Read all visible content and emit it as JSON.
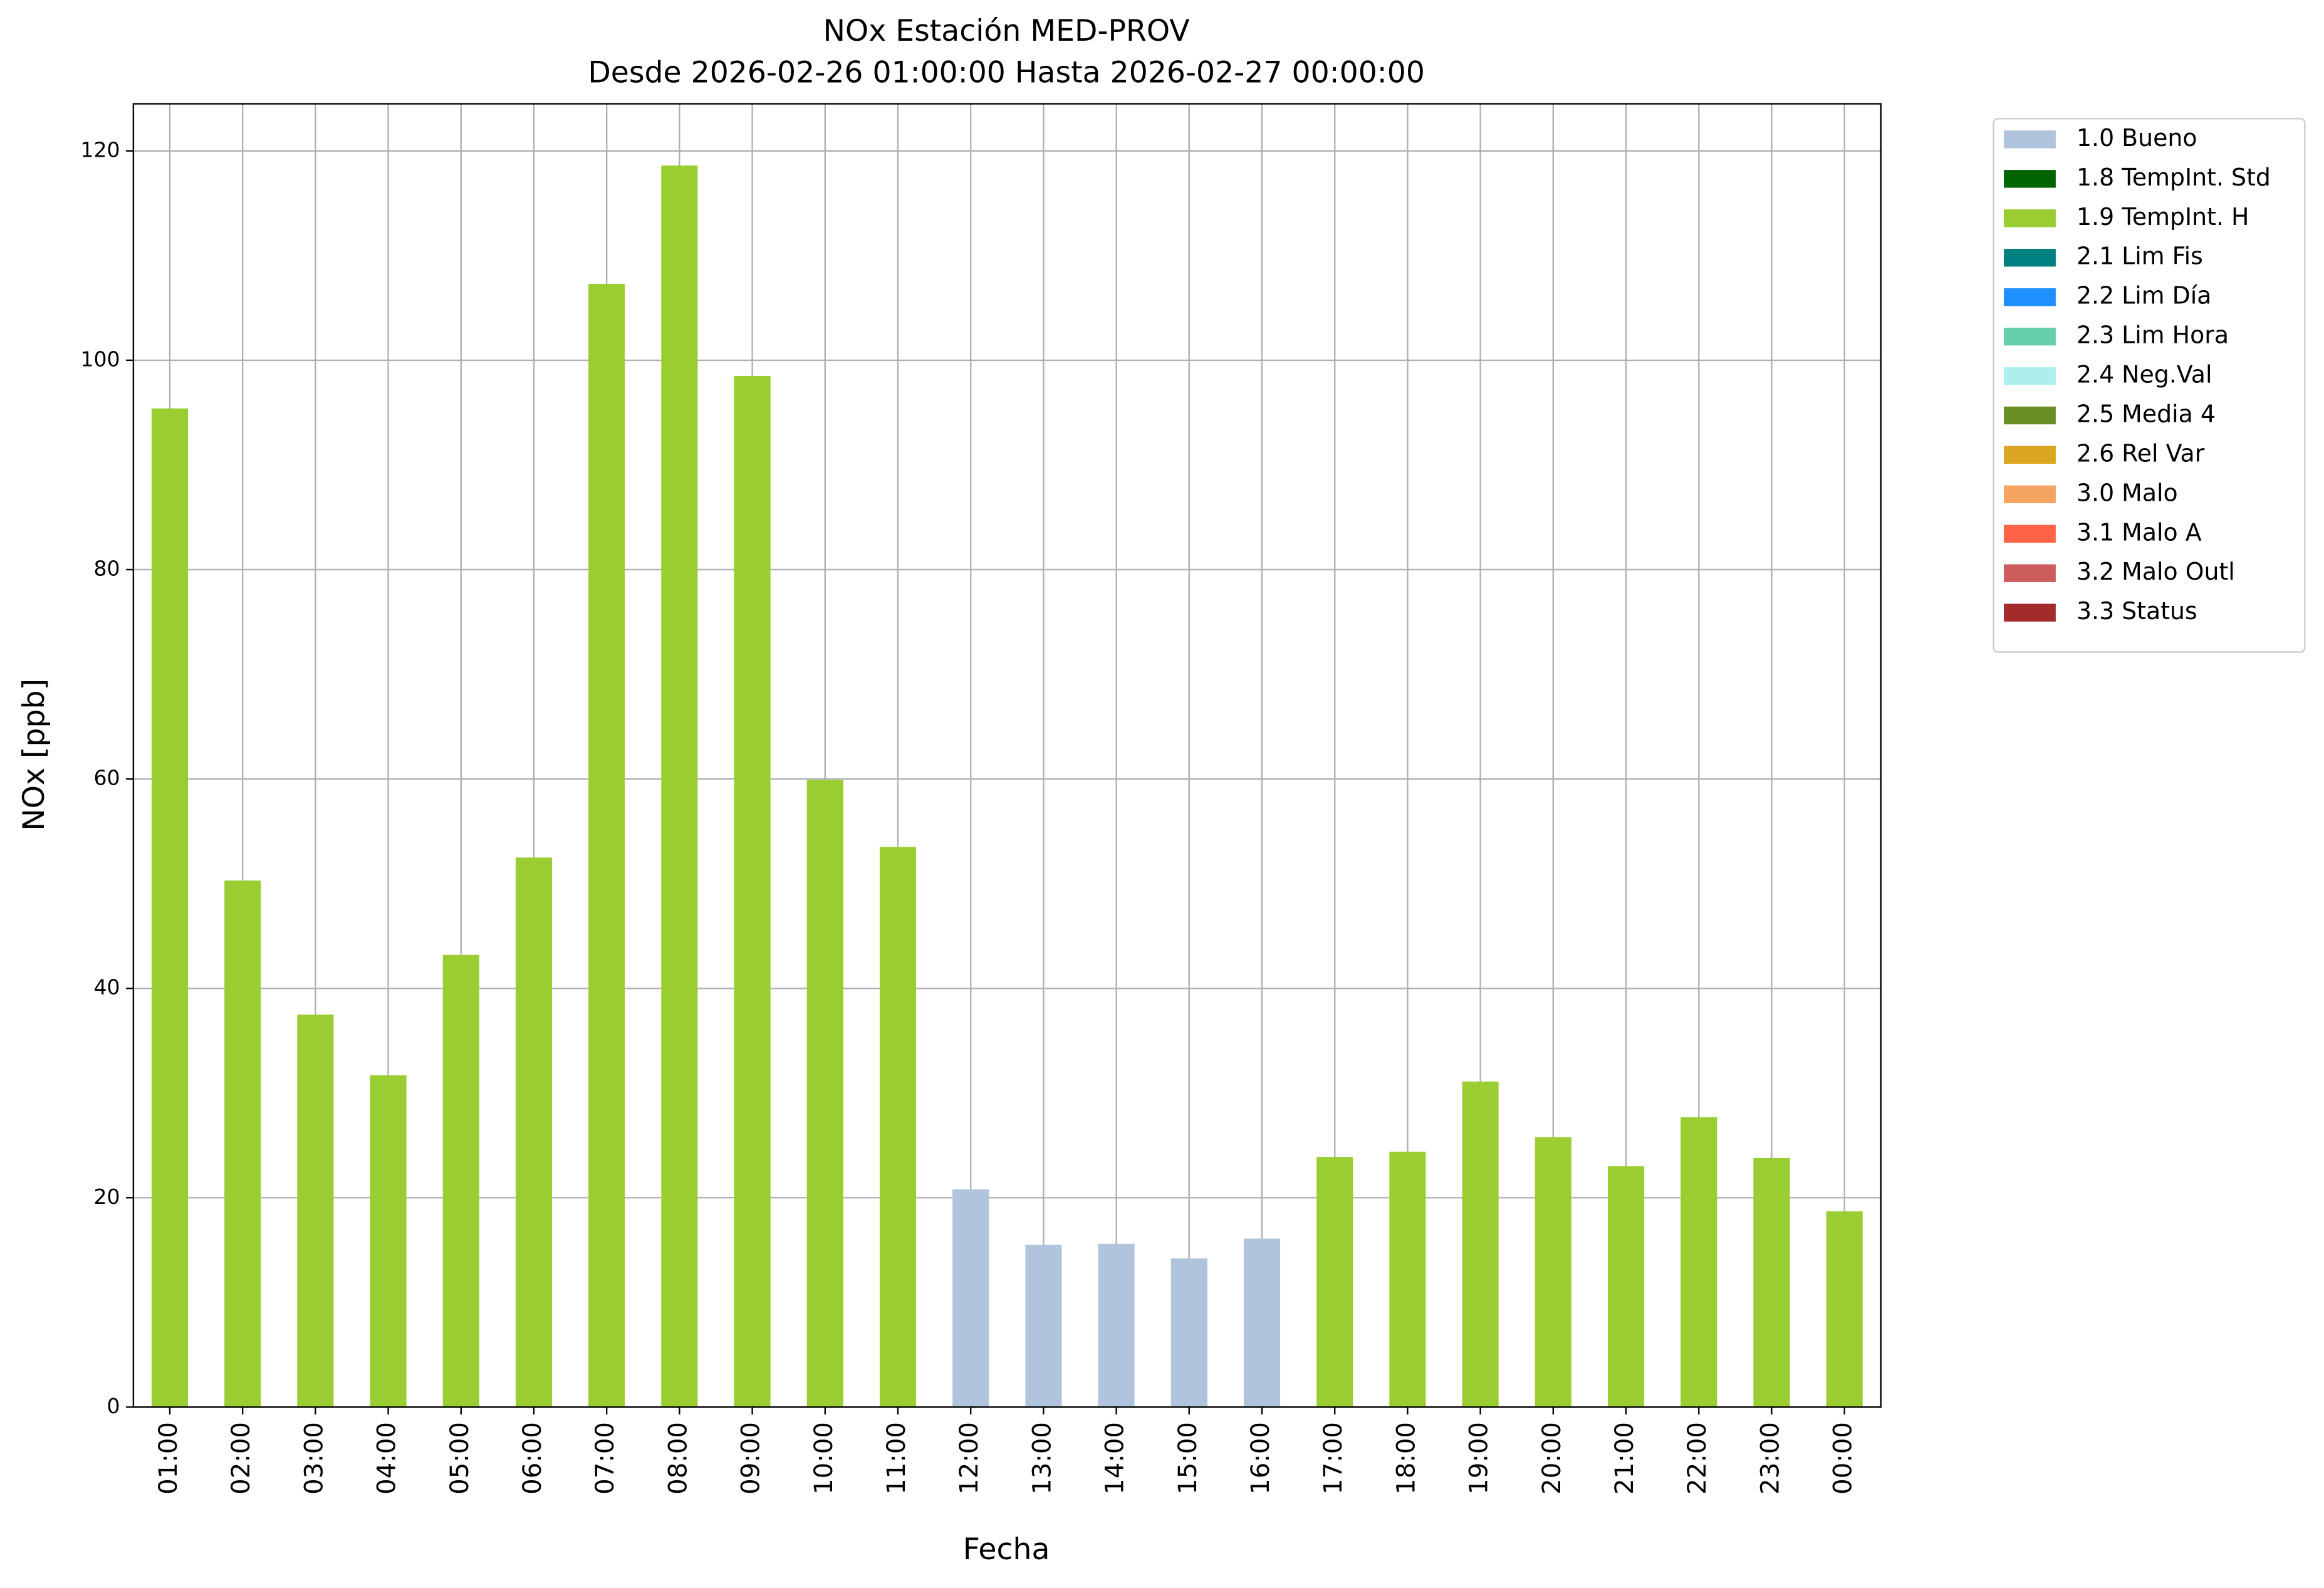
{
  "chart_data": {
    "type": "stacked_bar",
    "title": "NOx Estación MED-PROV",
    "subtitle": "Desde 2026-02-26 01:00:00 Hasta 2026-02-27 00:00:00",
    "x_label": "Fecha",
    "y_label": "NOx [ppb]",
    "categories": [
      "01:00",
      "02:00",
      "03:00",
      "04:00",
      "05:00",
      "06:00",
      "07:00",
      "08:00",
      "09:00",
      "10:00",
      "11:00",
      "12:00",
      "13:00",
      "14:00",
      "15:00",
      "16:00",
      "17:00",
      "18:00",
      "19:00",
      "20:00",
      "21:00",
      "22:00",
      "23:00",
      "00:00"
    ],
    "series": [
      {
        "name": "1.0 Bueno",
        "color": "#b0c4de",
        "values": [
          null,
          null,
          null,
          null,
          null,
          null,
          null,
          null,
          null,
          null,
          null,
          20.8,
          15.5,
          15.6,
          14.2,
          16.1,
          null,
          null,
          null,
          null,
          null,
          null,
          null,
          null
        ]
      },
      {
        "name": "1.8 TempInt. Std",
        "color": "#006400",
        "values": [
          null,
          null,
          null,
          null,
          null,
          null,
          null,
          null,
          null,
          null,
          null,
          null,
          null,
          null,
          null,
          null,
          null,
          null,
          null,
          null,
          null,
          null,
          null,
          null
        ]
      },
      {
        "name": "1.9 TempInt. H",
        "color": "#9acd32",
        "values": [
          95.4,
          50.3,
          37.5,
          31.7,
          43.2,
          52.5,
          107.3,
          118.6,
          98.5,
          59.9,
          53.5,
          null,
          null,
          null,
          null,
          null,
          23.9,
          24.4,
          31.1,
          25.8,
          23.0,
          27.7,
          23.8,
          18.7
        ]
      },
      {
        "name": "2.1 Lim Fis",
        "color": "#008080",
        "values": [
          null,
          null,
          null,
          null,
          null,
          null,
          null,
          null,
          null,
          null,
          null,
          null,
          null,
          null,
          null,
          null,
          null,
          null,
          null,
          null,
          null,
          null,
          null,
          null
        ]
      },
      {
        "name": "2.2 Lim Día",
        "color": "#1e90ff",
        "values": [
          null,
          null,
          null,
          null,
          null,
          null,
          null,
          null,
          null,
          null,
          null,
          null,
          null,
          null,
          null,
          null,
          null,
          null,
          null,
          null,
          null,
          null,
          null,
          null
        ]
      },
      {
        "name": "2.3 Lim Hora",
        "color": "#66cdaa",
        "values": [
          null,
          null,
          null,
          null,
          null,
          null,
          null,
          null,
          null,
          null,
          null,
          null,
          null,
          null,
          null,
          null,
          null,
          null,
          null,
          null,
          null,
          null,
          null,
          null
        ]
      },
      {
        "name": "2.4 Neg.Val",
        "color": "#afeeee",
        "values": [
          null,
          null,
          null,
          null,
          null,
          null,
          null,
          null,
          null,
          null,
          null,
          null,
          null,
          null,
          null,
          null,
          null,
          null,
          null,
          null,
          null,
          null,
          null,
          null
        ]
      },
      {
        "name": "2.5 Media 4",
        "color": "#6b8e23",
        "values": [
          null,
          null,
          null,
          null,
          null,
          null,
          null,
          null,
          null,
          null,
          null,
          null,
          null,
          null,
          null,
          null,
          null,
          null,
          null,
          null,
          null,
          null,
          null,
          null
        ]
      },
      {
        "name": "2.6 Rel Var",
        "color": "#daa520",
        "values": [
          null,
          null,
          null,
          null,
          null,
          null,
          null,
          null,
          null,
          null,
          null,
          null,
          null,
          null,
          null,
          null,
          null,
          null,
          null,
          null,
          null,
          null,
          null,
          null
        ]
      },
      {
        "name": "3.0 Malo",
        "color": "#f4a460",
        "values": [
          null,
          null,
          null,
          null,
          null,
          null,
          null,
          null,
          null,
          null,
          null,
          null,
          null,
          null,
          null,
          null,
          null,
          null,
          null,
          null,
          null,
          null,
          null,
          null
        ]
      },
      {
        "name": "3.1 Malo A",
        "color": "#ff6347",
        "values": [
          null,
          null,
          null,
          null,
          null,
          null,
          null,
          null,
          null,
          null,
          null,
          null,
          null,
          null,
          null,
          null,
          null,
          null,
          null,
          null,
          null,
          null,
          null,
          null
        ]
      },
      {
        "name": "3.2 Malo Outl",
        "color": "#cd5c5c",
        "values": [
          null,
          null,
          null,
          null,
          null,
          null,
          null,
          null,
          null,
          null,
          null,
          null,
          null,
          null,
          null,
          null,
          null,
          null,
          null,
          null,
          null,
          null,
          null,
          null
        ]
      },
      {
        "name": "3.3 Status",
        "color": "#a52a2a",
        "values": [
          null,
          null,
          null,
          null,
          null,
          null,
          null,
          null,
          null,
          null,
          null,
          null,
          null,
          null,
          null,
          null,
          null,
          null,
          null,
          null,
          null,
          null,
          null,
          null
        ]
      }
    ],
    "ylim": [
      0,
      124.5
    ],
    "yticks": [
      0,
      20,
      40,
      60,
      80,
      100,
      120
    ],
    "grid": true,
    "legend": "outside-right"
  }
}
